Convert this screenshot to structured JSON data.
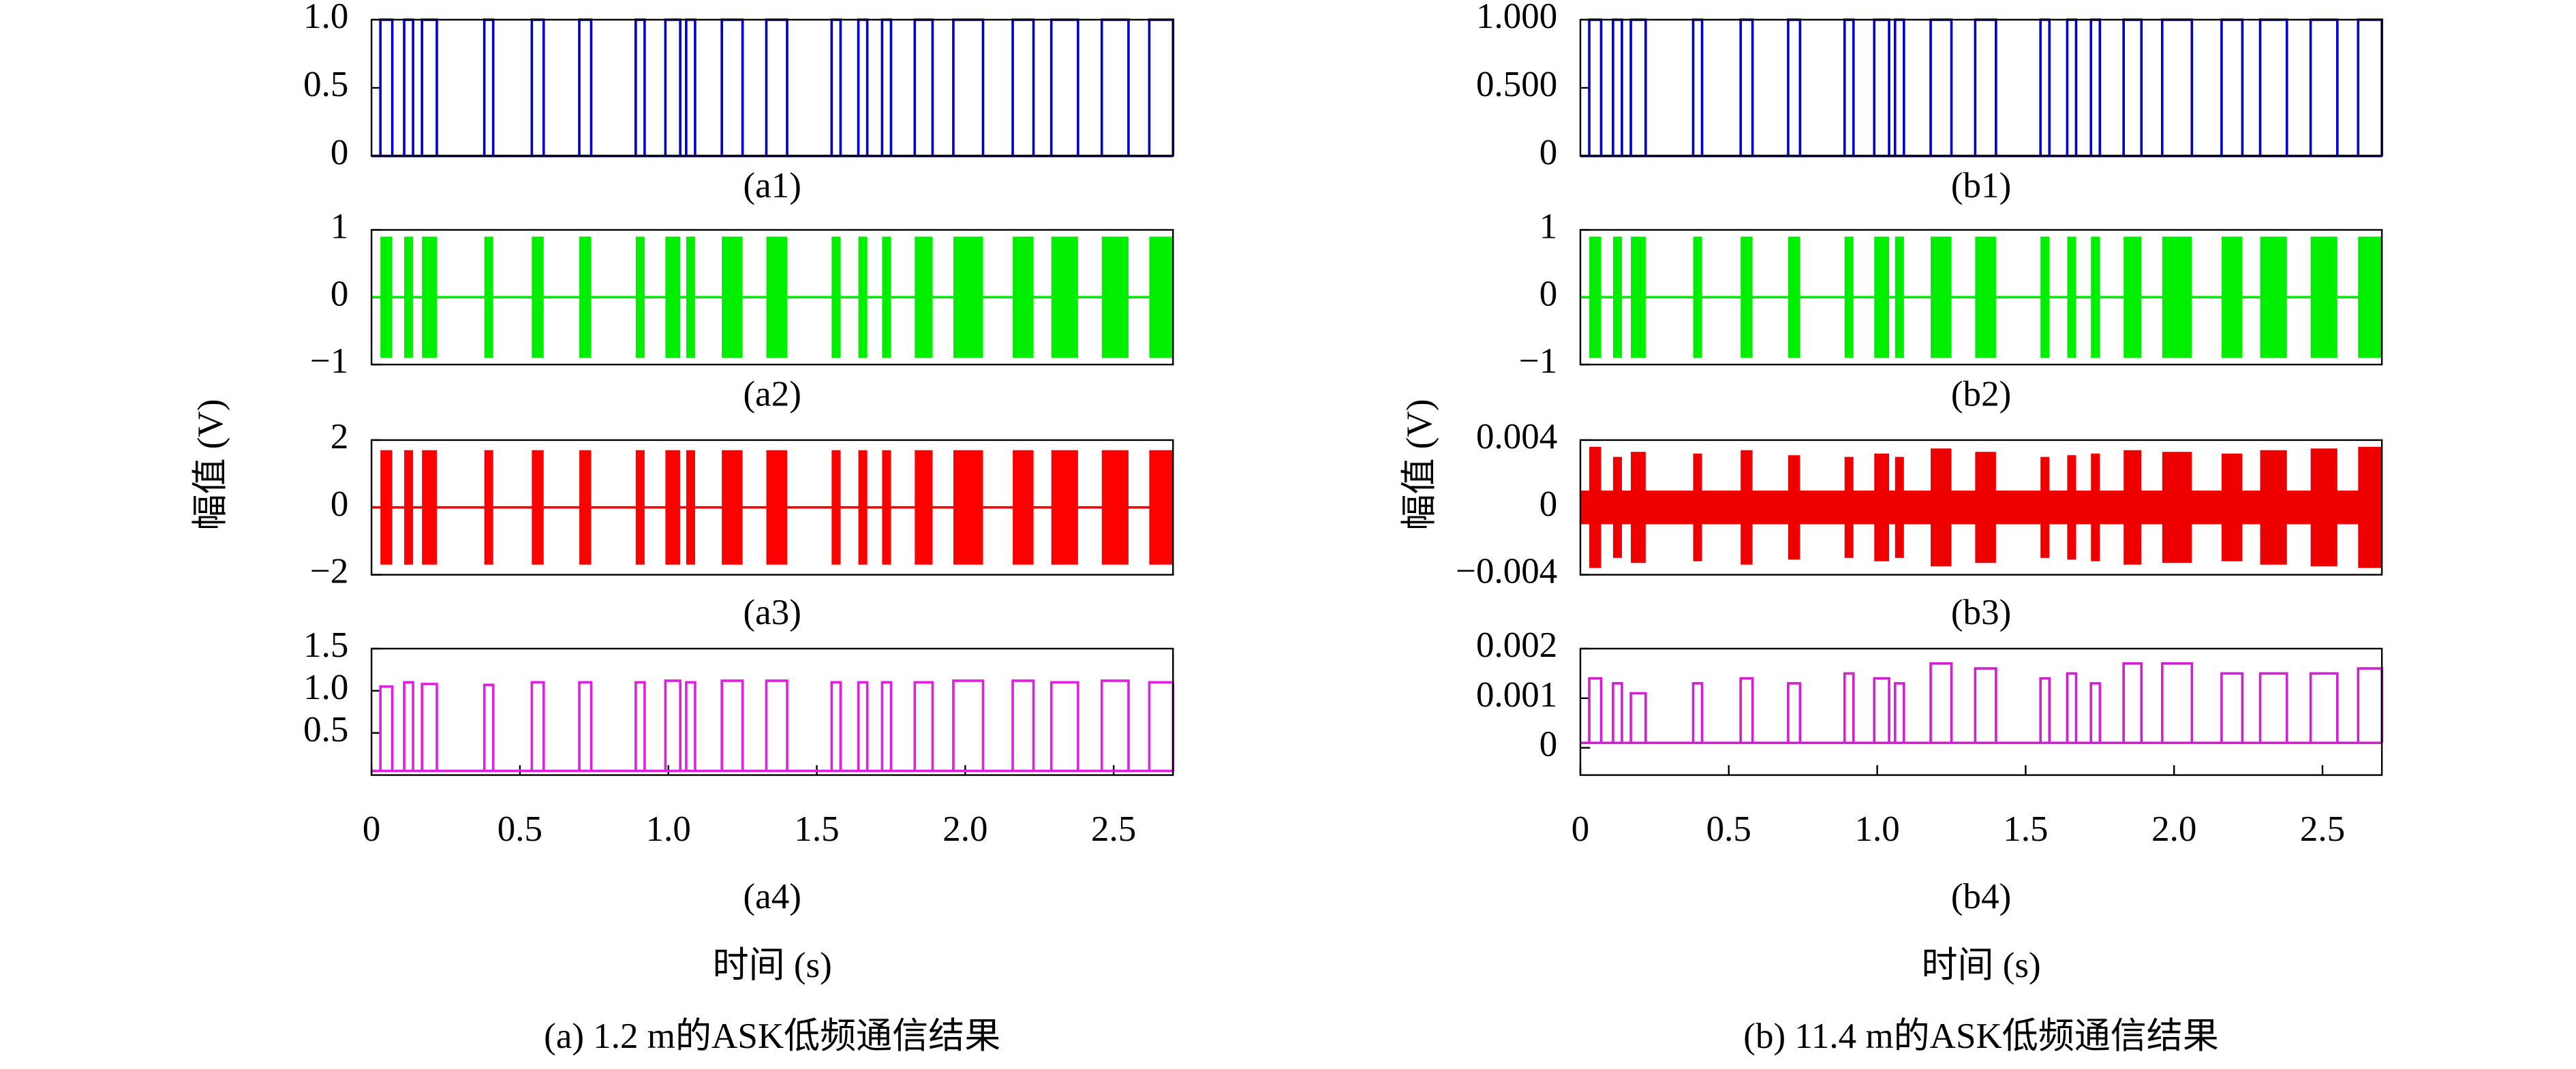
{
  "figures": [
    {
      "ylabel": "幅值 (V)",
      "xlabel": "时间 (s)",
      "caption": "(a) 1.2 m的ASK低频通信结果"
    },
    {
      "ylabel": "幅值 (V)",
      "xlabel": "时间 (s)",
      "caption": "(b) 11.4 m的ASK低频通信结果"
    }
  ],
  "chart_data": [
    {
      "type": "pulse",
      "title": "(a1)",
      "color": "#0000cc",
      "baseline": 0,
      "xlim": [
        0,
        2.7
      ],
      "ylim": [
        0,
        1
      ],
      "yticks": [
        0,
        0.5,
        {
          "value": 1,
          "label": "1.0"
        }
      ],
      "x": [
        0.03,
        0.11,
        0.17,
        0.38,
        0.54,
        0.7,
        0.89,
        0.99,
        1.06,
        1.18,
        1.33,
        1.55,
        1.64,
        1.72,
        1.83,
        1.96,
        2.16,
        2.29,
        2.46,
        2.62
      ],
      "x_end": [
        0.07,
        0.14,
        0.22,
        0.41,
        0.58,
        0.74,
        0.92,
        1.04,
        1.09,
        1.25,
        1.4,
        1.58,
        1.67,
        1.75,
        1.89,
        2.06,
        2.23,
        2.38,
        2.55,
        2.7
      ],
      "values": [
        1,
        1,
        1,
        1,
        1,
        1,
        1,
        1,
        1,
        1,
        1,
        1,
        1,
        1,
        1,
        1,
        1,
        1,
        1,
        1
      ]
    },
    {
      "type": "burst",
      "title": "(a2)",
      "color": "#00ee00",
      "baseline": 0,
      "xlim": [
        0,
        2.7
      ],
      "ylim": [
        -1,
        1
      ],
      "yticks": [
        {
          "value": -1,
          "label": "−1"
        },
        0,
        1
      ],
      "x": [
        0.03,
        0.11,
        0.17,
        0.38,
        0.54,
        0.7,
        0.89,
        0.99,
        1.06,
        1.18,
        1.33,
        1.55,
        1.64,
        1.72,
        1.83,
        1.96,
        2.16,
        2.29,
        2.46,
        2.62
      ],
      "x_end": [
        0.07,
        0.14,
        0.22,
        0.41,
        0.58,
        0.74,
        0.92,
        1.04,
        1.09,
        1.25,
        1.4,
        1.58,
        1.67,
        1.75,
        1.89,
        2.06,
        2.23,
        2.38,
        2.55,
        2.7
      ],
      "values": [
        0.9,
        0.9,
        0.9,
        0.9,
        0.9,
        0.9,
        0.9,
        0.9,
        0.9,
        0.9,
        0.9,
        0.9,
        0.9,
        0.9,
        0.9,
        0.9,
        0.9,
        0.9,
        0.9,
        0.9
      ]
    },
    {
      "type": "burst",
      "title": "(a3)",
      "color": "#ff0000",
      "baseline": 0,
      "xlim": [
        0,
        2.7
      ],
      "ylim": [
        -2,
        2
      ],
      "yticks": [
        {
          "value": -2,
          "label": "−2"
        },
        0,
        2
      ],
      "x": [
        0.03,
        0.11,
        0.17,
        0.38,
        0.54,
        0.7,
        0.89,
        0.99,
        1.06,
        1.18,
        1.33,
        1.55,
        1.64,
        1.72,
        1.83,
        1.96,
        2.16,
        2.29,
        2.46,
        2.62
      ],
      "x_end": [
        0.07,
        0.14,
        0.22,
        0.41,
        0.58,
        0.74,
        0.92,
        1.04,
        1.09,
        1.25,
        1.4,
        1.58,
        1.67,
        1.75,
        1.89,
        2.06,
        2.23,
        2.38,
        2.55,
        2.7
      ],
      "values": [
        1.7,
        1.7,
        1.7,
        1.7,
        1.7,
        1.7,
        1.7,
        1.7,
        1.7,
        1.7,
        1.7,
        1.7,
        1.7,
        1.7,
        1.7,
        1.7,
        1.7,
        1.7,
        1.7,
        1.7
      ]
    },
    {
      "type": "pulse",
      "title": "(a4)",
      "color": "#e020e0",
      "baseline": 0.05,
      "xlim": [
        0,
        2.7
      ],
      "ylim": [
        0,
        1.5
      ],
      "yticks": [
        0.5,
        {
          "value": 1,
          "label": "1.0"
        },
        1.5
      ],
      "xticks": [
        0,
        0.5,
        {
          "value": 1,
          "label": "1.0"
        },
        1.5,
        {
          "value": 2,
          "label": "2.0"
        },
        2.5
      ],
      "x": [
        0.03,
        0.11,
        0.17,
        0.38,
        0.54,
        0.7,
        0.89,
        0.99,
        1.06,
        1.18,
        1.33,
        1.55,
        1.64,
        1.72,
        1.83,
        1.96,
        2.16,
        2.29,
        2.46,
        2.62
      ],
      "x_end": [
        0.07,
        0.14,
        0.22,
        0.41,
        0.58,
        0.74,
        0.92,
        1.04,
        1.09,
        1.25,
        1.4,
        1.58,
        1.67,
        1.75,
        1.89,
        2.06,
        2.23,
        2.38,
        2.55,
        2.7
      ],
      "values": [
        1.05,
        1.1,
        1.08,
        1.07,
        1.1,
        1.1,
        1.1,
        1.12,
        1.1,
        1.12,
        1.12,
        1.1,
        1.1,
        1.1,
        1.1,
        1.12,
        1.12,
        1.1,
        1.12,
        1.1
      ]
    },
    {
      "type": "pulse",
      "title": "(b1)",
      "color": "#0000cc",
      "baseline": 0,
      "xlim": [
        0,
        2.7
      ],
      "ylim": [
        0,
        1
      ],
      "yticks": [
        0,
        {
          "value": 0.5,
          "label": "0.500"
        },
        {
          "value": 1,
          "label": "1.000"
        }
      ],
      "x": [
        0.03,
        0.11,
        0.17,
        0.38,
        0.54,
        0.7,
        0.89,
        0.99,
        1.06,
        1.18,
        1.33,
        1.55,
        1.64,
        1.72,
        1.83,
        1.96,
        2.16,
        2.29,
        2.46,
        2.62
      ],
      "x_end": [
        0.07,
        0.14,
        0.22,
        0.41,
        0.58,
        0.74,
        0.92,
        1.04,
        1.09,
        1.25,
        1.4,
        1.58,
        1.67,
        1.75,
        1.89,
        2.06,
        2.23,
        2.38,
        2.55,
        2.7
      ],
      "values": [
        1,
        1,
        1,
        1,
        1,
        1,
        1,
        1,
        1,
        1,
        1,
        1,
        1,
        1,
        1,
        1,
        1,
        1,
        1,
        1
      ]
    },
    {
      "type": "burst",
      "title": "(b2)",
      "color": "#00ee00",
      "baseline": 0,
      "xlim": [
        0,
        2.7
      ],
      "ylim": [
        -1,
        1
      ],
      "yticks": [
        {
          "value": -1,
          "label": "−1"
        },
        0,
        1
      ],
      "x": [
        0.03,
        0.11,
        0.17,
        0.38,
        0.54,
        0.7,
        0.89,
        0.99,
        1.06,
        1.18,
        1.33,
        1.55,
        1.64,
        1.72,
        1.83,
        1.96,
        2.16,
        2.29,
        2.46,
        2.62
      ],
      "x_end": [
        0.07,
        0.14,
        0.22,
        0.41,
        0.58,
        0.74,
        0.92,
        1.04,
        1.09,
        1.25,
        1.4,
        1.58,
        1.67,
        1.75,
        1.89,
        2.06,
        2.23,
        2.38,
        2.55,
        2.7
      ],
      "values": [
        0.9,
        0.9,
        0.9,
        0.9,
        0.9,
        0.9,
        0.9,
        0.9,
        0.9,
        0.9,
        0.9,
        0.9,
        0.9,
        0.9,
        0.9,
        0.9,
        0.9,
        0.9,
        0.9,
        0.9
      ]
    },
    {
      "type": "burst",
      "title": "(b3)",
      "color": "#ee0000",
      "baseline": 0.001,
      "xlim": [
        0,
        2.7
      ],
      "ylim": [
        -0.004,
        0.004
      ],
      "yticks": [
        {
          "value": -0.004,
          "label": "−0.004"
        },
        0,
        0.004
      ],
      "x": [
        0.03,
        0.11,
        0.17,
        0.38,
        0.54,
        0.7,
        0.89,
        0.99,
        1.06,
        1.18,
        1.33,
        1.55,
        1.64,
        1.72,
        1.83,
        1.96,
        2.16,
        2.29,
        2.46,
        2.62
      ],
      "x_end": [
        0.07,
        0.14,
        0.22,
        0.41,
        0.58,
        0.74,
        0.92,
        1.04,
        1.09,
        1.25,
        1.4,
        1.58,
        1.67,
        1.75,
        1.89,
        2.06,
        2.23,
        2.38,
        2.55,
        2.7
      ],
      "values": [
        0.0036,
        0.003,
        0.0033,
        0.0032,
        0.0034,
        0.0031,
        0.003,
        0.0032,
        0.003,
        0.0035,
        0.0033,
        0.003,
        0.0031,
        0.0032,
        0.0034,
        0.0033,
        0.0032,
        0.0034,
        0.0035,
        0.0036
      ]
    },
    {
      "type": "pulse",
      "title": "(b4)",
      "color": "#d020d0",
      "baseline": 0.0001,
      "xlim": [
        0,
        2.7
      ],
      "ylim": [
        -0.00055,
        0.002
      ],
      "yticks": [
        0,
        0.001,
        0.002
      ],
      "xticks": [
        0,
        0.5,
        {
          "value": 1,
          "label": "1.0"
        },
        1.5,
        {
          "value": 2,
          "label": "2.0"
        },
        2.5
      ],
      "x": [
        0.03,
        0.11,
        0.17,
        0.38,
        0.54,
        0.7,
        0.89,
        0.99,
        1.06,
        1.18,
        1.33,
        1.55,
        1.64,
        1.72,
        1.83,
        1.96,
        2.16,
        2.29,
        2.46,
        2.62
      ],
      "x_end": [
        0.07,
        0.14,
        0.22,
        0.41,
        0.58,
        0.74,
        0.92,
        1.04,
        1.09,
        1.25,
        1.4,
        1.58,
        1.67,
        1.75,
        1.89,
        2.06,
        2.23,
        2.38,
        2.55,
        2.7
      ],
      "values": [
        0.0014,
        0.0013,
        0.0011,
        0.0013,
        0.0014,
        0.0013,
        0.0015,
        0.0014,
        0.0013,
        0.0017,
        0.0016,
        0.0014,
        0.0015,
        0.0013,
        0.0017,
        0.0017,
        0.0015,
        0.0015,
        0.0015,
        0.0016
      ]
    }
  ]
}
